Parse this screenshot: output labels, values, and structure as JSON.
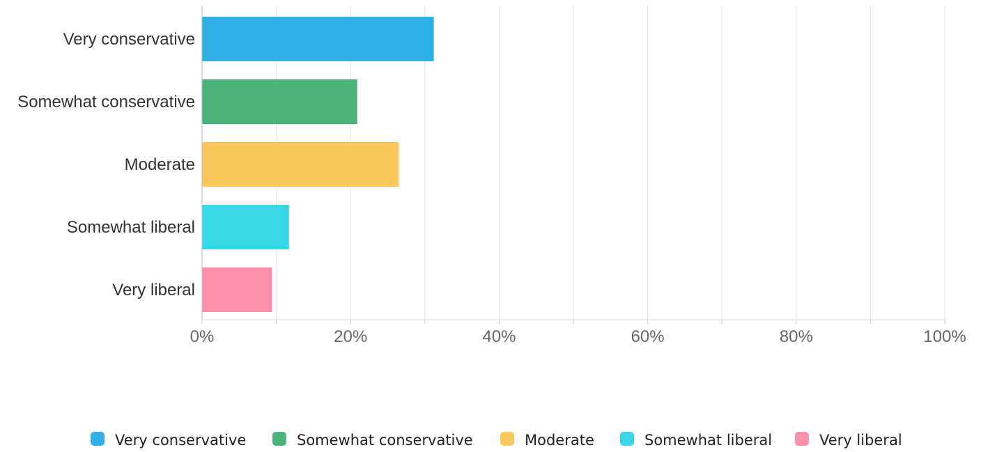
{
  "chart_data": {
    "type": "bar",
    "orientation": "horizontal",
    "categories": [
      "Very conservative",
      "Somewhat conservative",
      "Moderate",
      "Somewhat liberal",
      "Very liberal"
    ],
    "values": [
      31.2,
      20.9,
      26.5,
      11.7,
      9.4
    ],
    "value_unit": "%",
    "colors": [
      "#2EAFE6",
      "#4CB37A",
      "#FCC75A",
      "#38D6E6",
      "#FF8FAB"
    ],
    "x_ticks": [
      "0%",
      "20%",
      "40%",
      "60%",
      "80%",
      "100%"
    ],
    "xlim": [
      0,
      100
    ],
    "xlabel": "",
    "ylabel": "",
    "title": "",
    "grid": true,
    "legend": {
      "placement": "bottom-center",
      "items": [
        "Very conservative",
        "Somewhat conservative",
        "Moderate",
        "Somewhat liberal",
        "Very liberal"
      ]
    }
  }
}
